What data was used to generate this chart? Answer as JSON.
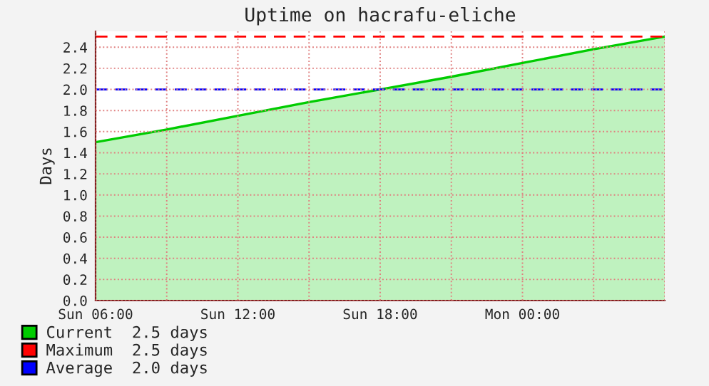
{
  "chart_data": {
    "type": "area",
    "title": "Uptime on hacrafu-eliche",
    "ylabel": "Days",
    "categories": [
      "Sun 06:00",
      null,
      "Sun 12:00",
      null,
      "Sun 18:00",
      null,
      "Mon 00:00",
      null,
      null
    ],
    "series": [
      {
        "name": "Current  2.5 days",
        "color": "#00cc00",
        "values": [
          1.5,
          1.62,
          1.75,
          1.88,
          2.0,
          2.12,
          2.25,
          2.38,
          2.5
        ]
      }
    ],
    "ref_lines": [
      {
        "axis": "y",
        "value": 2.5,
        "label": "Maximum  2.5 days",
        "color": "#ff0000",
        "line_style": "dashed"
      },
      {
        "axis": "y",
        "value": 2.0,
        "label": "Average  2.0 days",
        "color": "#0000ff",
        "line_style": "dashed"
      }
    ],
    "ylim": [
      0,
      2.55
    ],
    "yticks": [
      {
        "value": 0,
        "label": "0.0"
      },
      {
        "value": 0.2,
        "label": "0.2"
      },
      {
        "value": 0.4,
        "label": "0.4"
      },
      {
        "value": 0.6,
        "label": "0.6"
      },
      {
        "value": 0.8,
        "label": "0.8"
      },
      {
        "value": 1.0,
        "label": "1.0"
      },
      {
        "value": 1.2,
        "label": "1.2"
      },
      {
        "value": 1.4,
        "label": "1.4"
      },
      {
        "value": 1.6,
        "label": "1.6"
      },
      {
        "value": 1.8,
        "label": "1.8"
      },
      {
        "value": 2.0,
        "label": "2.0"
      },
      {
        "value": 2.2,
        "label": "2.2"
      },
      {
        "value": 2.4,
        "label": "2.4"
      }
    ],
    "grid": true,
    "legend": "bottom"
  }
}
